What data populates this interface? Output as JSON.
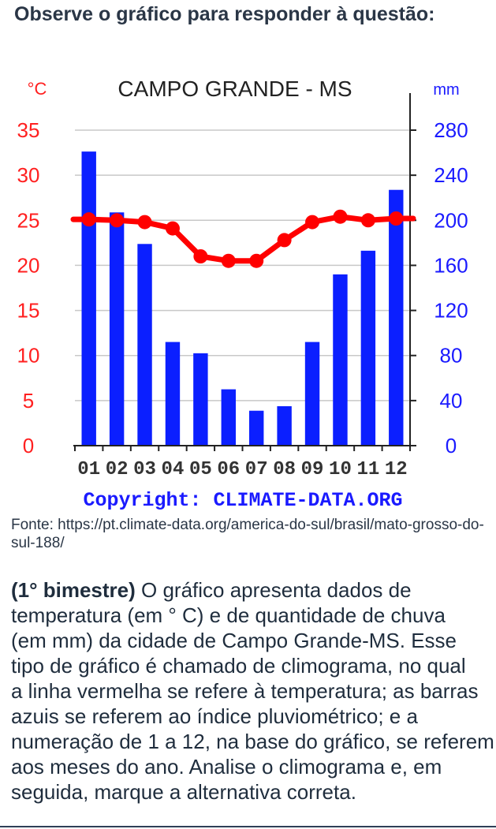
{
  "header": {
    "title": "Observe o gráfico para responder à questão:"
  },
  "chart_data": {
    "type": "bar+line",
    "title": "CAMPO GRANDE - MS",
    "y_left_unit": "°C",
    "y_right_unit": "mm",
    "categories": [
      "01",
      "02",
      "03",
      "04",
      "05",
      "06",
      "07",
      "08",
      "09",
      "10",
      "11",
      "12"
    ],
    "y_left_ticks": [
      "35",
      "30",
      "25",
      "20",
      "15",
      "10",
      "5",
      "0"
    ],
    "y_right_ticks": [
      "280",
      "240",
      "200",
      "160",
      "120",
      "80",
      "40",
      "0"
    ],
    "y_left_range": [
      0,
      35
    ],
    "y_right_range": [
      0,
      280
    ],
    "grid": true,
    "precipitation_mm": [
      261,
      207,
      179,
      92,
      82,
      50,
      31,
      35,
      92,
      152,
      173,
      227
    ],
    "temperature_c": [
      25.1,
      25.0,
      24.8,
      24.1,
      21.0,
      20.5,
      20.5,
      22.8,
      24.8,
      25.4,
      25.0,
      25.2
    ],
    "bar_color": "#0b1fff",
    "line_color": "#ff0000",
    "copyright": "Copyright: CLIMATE-DATA.ORG"
  },
  "source": {
    "text": "Fonte: https://pt.climate-data.org/america-do-sul/brasil/mato-grosso-do-sul-188/"
  },
  "question": {
    "bold": "(1° bimestre)",
    "line1_rest": " O gráfico apresenta dados de",
    "line2": "temperatura (em ° C) e de quantidade de chuva",
    "line3": "(em mm) da cidade de Campo Grande-MS. Esse",
    "line4": "tipo de gráfico é chamado de climograma, no qual",
    "line5": "a linha vermelha se refere à temperatura; as barras",
    "line6": "azuis se referem ao índice pluviométrico; e a",
    "line7": "numeração de 1 a 12, na base do gráfico, se referem",
    "line8": "aos meses do ano. Analise o climograma e, em",
    "line9": "seguida, marque a alternativa correta."
  }
}
